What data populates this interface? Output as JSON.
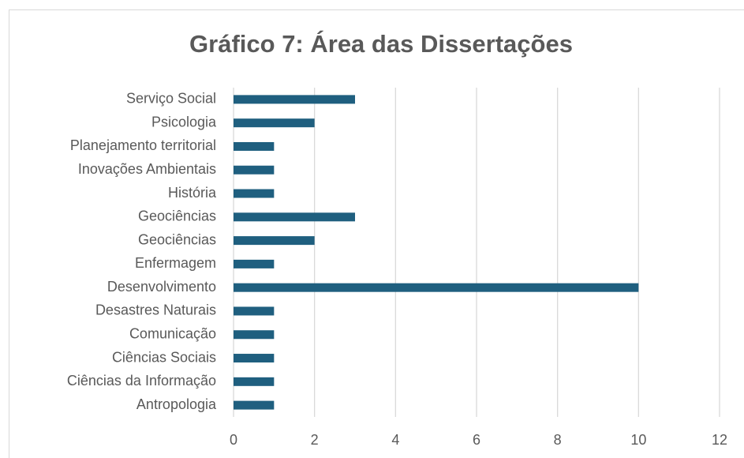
{
  "chart_data": {
    "type": "barh",
    "title": "Gráfico 7: Área das Dissertações",
    "categories": [
      "Serviço Social",
      "Psicologia",
      "Planejamento territorial",
      "Inovações Ambientais",
      "História",
      "Geociências",
      "Geociências",
      "Enfermagem",
      "Desenvolvimento",
      "Desastres Naturais",
      "Comunicação",
      "Ciências Sociais",
      "Ciências da Informação",
      "Antropologia"
    ],
    "values": [
      3,
      2,
      1,
      1,
      1,
      3,
      2,
      1,
      10,
      1,
      1,
      1,
      1,
      1
    ],
    "color": "#1f5f7f",
    "xlim": [
      0,
      12
    ],
    "xticks": [
      0,
      2,
      4,
      6,
      8,
      10,
      12
    ],
    "grid": true
  }
}
